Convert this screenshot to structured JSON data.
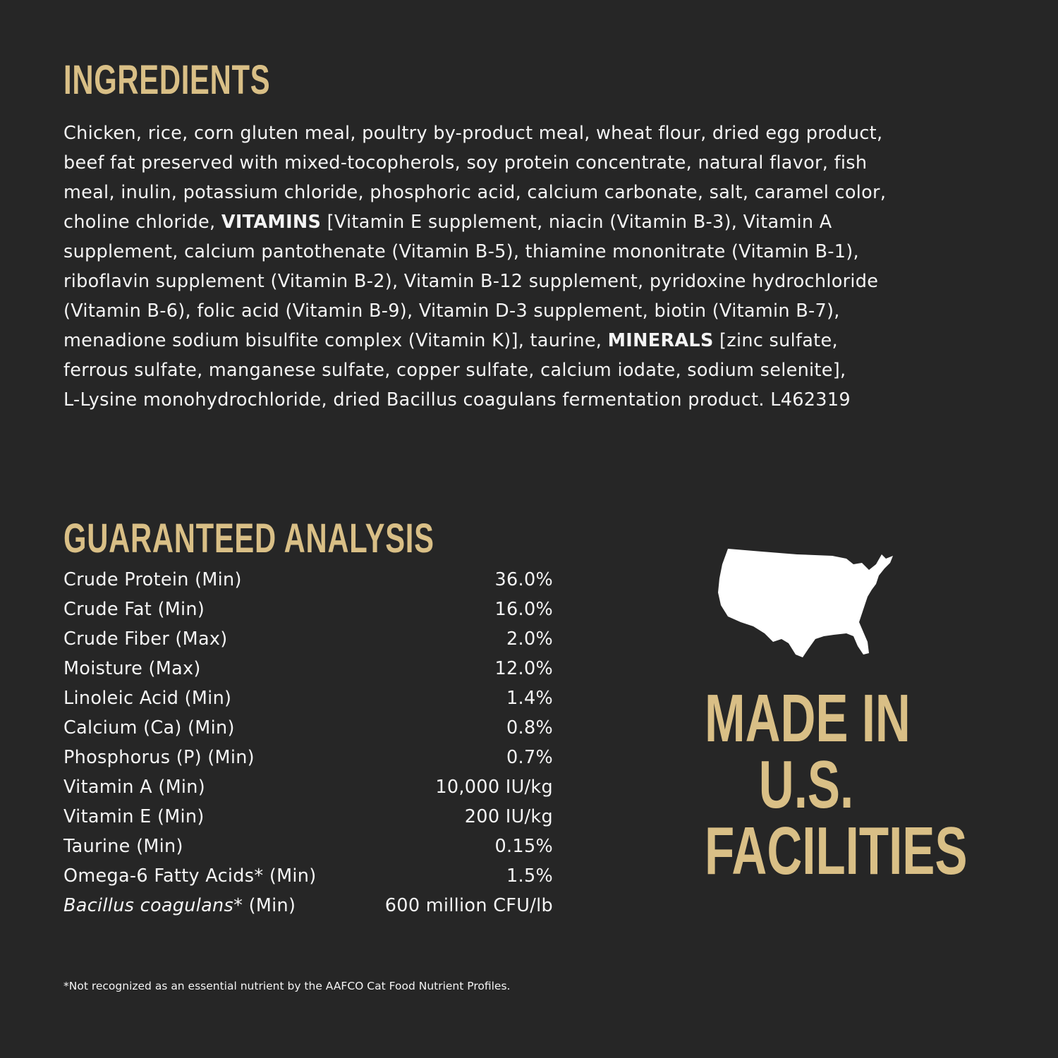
{
  "colors": {
    "background": "#262626",
    "accent": "#d9bf86",
    "text": "#f4f4f4"
  },
  "ingredients": {
    "title": "INGREDIENTS",
    "lines": [
      [
        {
          "t": "Chicken, rice, corn gluten meal, poultry by-product meal, wheat flour, dried egg product,"
        }
      ],
      [
        {
          "t": "beef fat preserved with mixed-tocopherols, soy protein concentrate, natural flavor, fish"
        }
      ],
      [
        {
          "t": "meal, inulin, potassium chloride, phosphoric acid, calcium carbonate, salt, caramel color,"
        }
      ],
      [
        {
          "t": "choline chloride, "
        },
        {
          "t": "VITAMINS",
          "b": true
        },
        {
          "t": " [Vitamin E supplement, niacin (Vitamin B-3), Vitamin A"
        }
      ],
      [
        {
          "t": "supplement, calcium pantothenate (Vitamin B-5), thiamine mononitrate (Vitamin B-1),"
        }
      ],
      [
        {
          "t": "riboflavin supplement (Vitamin B-2), Vitamin B-12 supplement, pyridoxine hydrochloride"
        }
      ],
      [
        {
          "t": "(Vitamin B-6), folic acid (Vitamin B-9), Vitamin D-3 supplement, biotin (Vitamin B-7),"
        }
      ],
      [
        {
          "t": "menadione sodium bisulfite complex (Vitamin K)], taurine, "
        },
        {
          "t": "MINERALS",
          "b": true
        },
        {
          "t": " [zinc sulfate,"
        }
      ],
      [
        {
          "t": "ferrous sulfate, manganese sulfate, copper sulfate, calcium iodate, sodium selenite],"
        }
      ],
      [
        {
          "t": "L-Lysine monohydrochloride, dried Bacillus coagulans fermentation product. L462319"
        }
      ]
    ]
  },
  "analysis": {
    "title": "GUARANTEED ANALYSIS",
    "rows": [
      {
        "label": "Crude Protein (Min)",
        "value": "36.0%"
      },
      {
        "label": "Crude Fat (Min)",
        "value": "16.0%"
      },
      {
        "label": "Crude Fiber (Max)",
        "value": "2.0%"
      },
      {
        "label": "Moisture (Max)",
        "value": "12.0%"
      },
      {
        "label": "Linoleic Acid (Min)",
        "value": "1.4%"
      },
      {
        "label": "Calcium (Ca) (Min)",
        "value": "0.8%"
      },
      {
        "label": "Phosphorus (P) (Min)",
        "value": "0.7%"
      },
      {
        "label": "Vitamin A (Min)",
        "value": "10,000 IU/kg"
      },
      {
        "label": "Vitamin E (Min)",
        "value": "200 IU/kg"
      },
      {
        "label": "Taurine (Min)",
        "value": "0.15%"
      },
      {
        "label": "Omega-6 Fatty Acids* (Min)",
        "value": "1.5%"
      },
      {
        "label_italic": "Bacillus coagulans",
        "label": "* (Min)",
        "value": "600 million CFU/lb"
      }
    ]
  },
  "footnote": "*Not recognized as an essential nutrient by the AAFCO Cat Food Nutrient Profiles.",
  "badge": {
    "icon": "usa-map-icon",
    "lines": [
      "MADE IN",
      "U.S.",
      "FACILITIES"
    ]
  }
}
